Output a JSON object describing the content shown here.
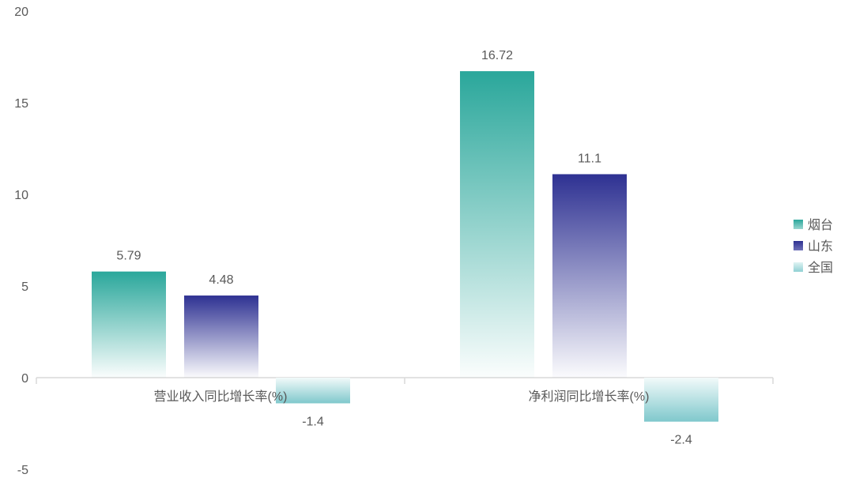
{
  "chart_data": {
    "type": "bar",
    "categories": [
      "营业收入同比增长率(%)",
      "净利润同比增长率(%)"
    ],
    "series": [
      {
        "name": "烟台",
        "values": [
          5.79,
          16.72
        ],
        "color": "#2aa79b"
      },
      {
        "name": "山东",
        "values": [
          4.48,
          11.1
        ],
        "color": "#2e3192"
      },
      {
        "name": "全国",
        "values": [
          -1.4,
          -2.4
        ],
        "color": "#8fd0d3"
      }
    ],
    "data_labels": [
      [
        "5.79",
        "16.72"
      ],
      [
        "4.48",
        "11.1"
      ],
      [
        "-1.4",
        "-2.4"
      ]
    ],
    "yticks": [
      "20",
      "15",
      "10",
      "5",
      "0",
      "-5"
    ],
    "ylim": [
      -5,
      20
    ],
    "grid": false,
    "legend_position": "right"
  }
}
